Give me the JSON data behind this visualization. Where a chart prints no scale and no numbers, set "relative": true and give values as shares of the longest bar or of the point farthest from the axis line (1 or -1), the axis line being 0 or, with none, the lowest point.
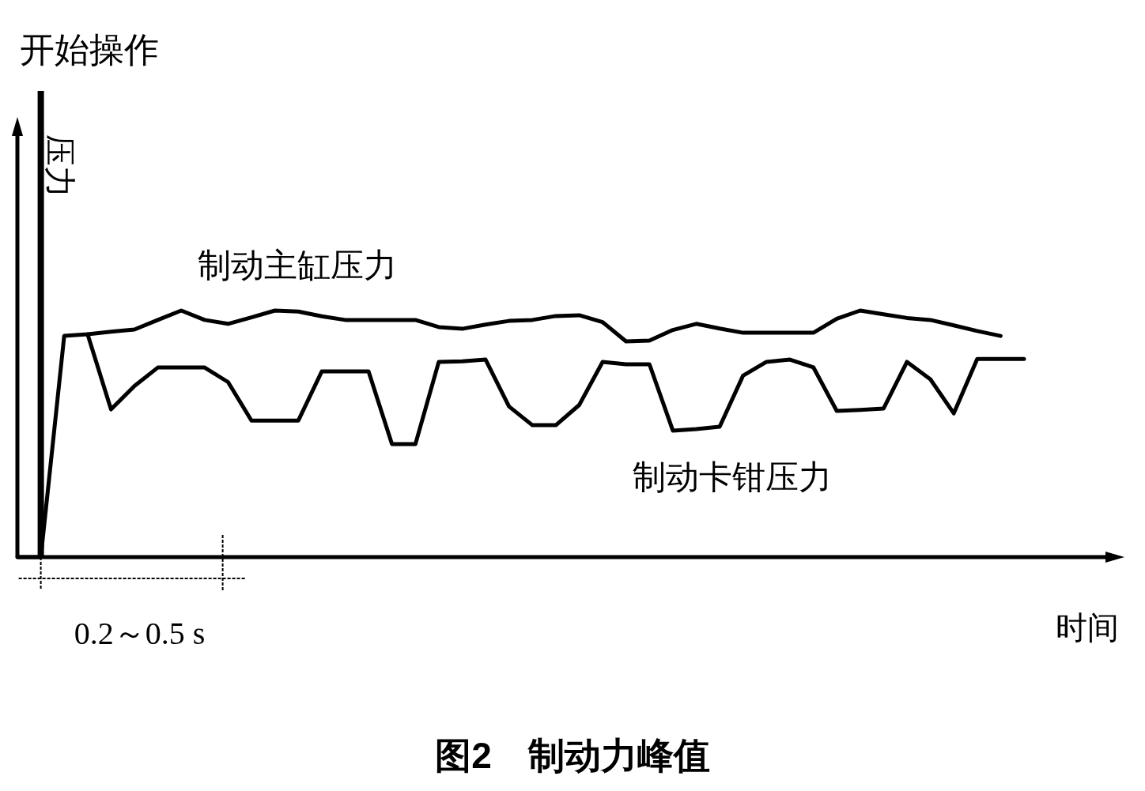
{
  "chart_data": {
    "type": "line",
    "title": "图2　制动力峰值",
    "xlabel": "时间",
    "ylabel": "压力",
    "relative": true,
    "legend": false,
    "line_style": "solid",
    "categories": [
      null,
      null,
      null,
      null,
      null,
      null,
      null,
      null,
      null,
      null,
      null,
      null,
      null,
      null,
      null,
      null,
      null,
      null,
      null,
      null,
      null,
      null,
      null,
      null,
      null,
      null,
      null,
      null,
      null,
      null,
      null,
      null,
      null,
      null,
      null,
      null,
      null,
      null,
      null,
      null,
      null,
      null,
      null,
      null
    ],
    "series": [
      {
        "name": "制动主缸压力",
        "color": "#000000",
        "values": [
          0,
          0,
          0.897,
          0.904,
          0.914,
          0.923,
          0.962,
          1,
          0.962,
          0.946,
          0.972,
          1,
          0.996,
          0.977,
          0.962,
          0.962,
          0.962,
          0.962,
          0.933,
          0.926,
          0.943,
          0.958,
          0.962,
          0.978,
          0.981,
          0.953,
          0.875,
          0.878,
          0.921,
          0.946,
          0.927,
          0.91,
          0.91,
          0.91,
          0.91,
          0.967,
          1,
          0.985,
          0.97,
          0.962,
          0.94,
          0.917,
          0.897,
          null
        ]
      },
      {
        "name": "制动卡钳压力",
        "color": "#000000",
        "values": [
          null,
          null,
          null,
          0.904,
          0.599,
          0.694,
          0.769,
          0.769,
          0.769,
          0.71,
          0.554,
          0.554,
          0.554,
          0.753,
          0.753,
          0.753,
          0.458,
          0.458,
          0.792,
          0.794,
          0.801,
          0.611,
          0.535,
          0.535,
          0.617,
          0.792,
          0.782,
          0.782,
          0.513,
          0.519,
          0.529,
          0.736,
          0.792,
          0.801,
          0.77,
          0.593,
          0.597,
          0.603,
          0.792,
          0.721,
          0.583,
          0.804,
          0.804,
          0.804
        ]
      }
    ],
    "annotations": [
      "开始操作",
      "0.2～0.5 s"
    ]
  }
}
